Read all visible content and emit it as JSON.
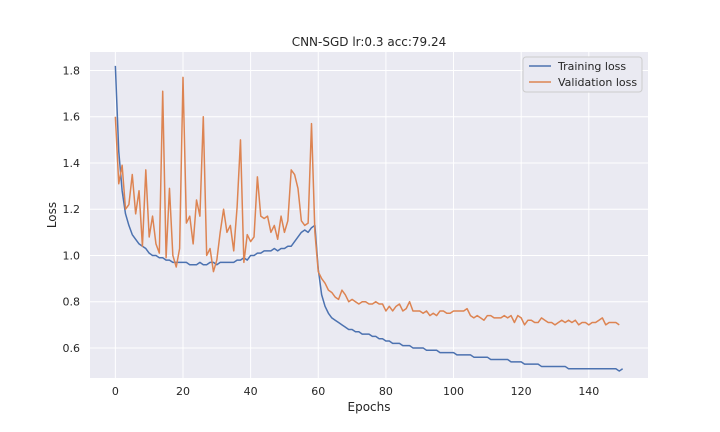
{
  "chart_data": {
    "type": "line",
    "title": "CNN-SGD lr:0.3 acc:79.24",
    "xlabel": "Epochs",
    "ylabel": "Loss",
    "xlim": [
      -7.5,
      157.5
    ],
    "ylim": [
      0.47,
      1.88
    ],
    "xticks": [
      0,
      20,
      40,
      60,
      80,
      100,
      120,
      140
    ],
    "yticks": [
      0.6,
      0.8,
      1.0,
      1.2,
      1.4,
      1.6,
      1.8
    ],
    "grid": true,
    "legend_position": "top-right",
    "series": [
      {
        "name": "Training loss",
        "color": "#4c72b0",
        "values": [
          1.82,
          1.45,
          1.28,
          1.18,
          1.13,
          1.09,
          1.07,
          1.05,
          1.04,
          1.03,
          1.01,
          1.0,
          1.0,
          0.99,
          0.99,
          0.98,
          0.98,
          0.97,
          0.97,
          0.97,
          0.97,
          0.97,
          0.96,
          0.96,
          0.96,
          0.97,
          0.96,
          0.96,
          0.97,
          0.97,
          0.96,
          0.97,
          0.97,
          0.97,
          0.97,
          0.97,
          0.98,
          0.98,
          0.99,
          0.98,
          1.0,
          1.0,
          1.01,
          1.01,
          1.02,
          1.02,
          1.02,
          1.03,
          1.02,
          1.03,
          1.03,
          1.04,
          1.04,
          1.06,
          1.08,
          1.1,
          1.11,
          1.1,
          1.12,
          1.13,
          0.94,
          0.83,
          0.78,
          0.75,
          0.73,
          0.72,
          0.71,
          0.7,
          0.69,
          0.68,
          0.68,
          0.67,
          0.67,
          0.66,
          0.66,
          0.66,
          0.65,
          0.65,
          0.64,
          0.64,
          0.63,
          0.63,
          0.62,
          0.62,
          0.62,
          0.61,
          0.61,
          0.61,
          0.6,
          0.6,
          0.6,
          0.6,
          0.59,
          0.59,
          0.59,
          0.59,
          0.58,
          0.58,
          0.58,
          0.58,
          0.58,
          0.57,
          0.57,
          0.57,
          0.57,
          0.57,
          0.56,
          0.56,
          0.56,
          0.56,
          0.56,
          0.55,
          0.55,
          0.55,
          0.55,
          0.55,
          0.55,
          0.54,
          0.54,
          0.54,
          0.54,
          0.53,
          0.53,
          0.53,
          0.53,
          0.53,
          0.52,
          0.52,
          0.52,
          0.52,
          0.52,
          0.52,
          0.52,
          0.52,
          0.51,
          0.51,
          0.51,
          0.51,
          0.51,
          0.51,
          0.51,
          0.51,
          0.51,
          0.51,
          0.51,
          0.51,
          0.51,
          0.51,
          0.51,
          0.5,
          0.51
        ]
      },
      {
        "name": "Validation loss",
        "color": "#dd8452",
        "values": [
          1.6,
          1.31,
          1.39,
          1.2,
          1.22,
          1.35,
          1.18,
          1.28,
          1.04,
          1.37,
          1.08,
          1.17,
          1.05,
          1.01,
          1.71,
          0.99,
          1.29,
          1.0,
          0.95,
          1.03,
          1.77,
          1.14,
          1.17,
          1.05,
          1.24,
          1.17,
          1.6,
          1.0,
          1.03,
          0.93,
          0.98,
          1.1,
          1.2,
          1.1,
          1.13,
          1.02,
          1.21,
          1.5,
          0.97,
          1.09,
          1.06,
          1.08,
          1.34,
          1.17,
          1.16,
          1.17,
          1.1,
          1.13,
          1.07,
          1.17,
          1.1,
          1.15,
          1.37,
          1.35,
          1.29,
          1.15,
          1.13,
          1.14,
          1.57,
          1.1,
          0.93,
          0.9,
          0.88,
          0.85,
          0.84,
          0.82,
          0.81,
          0.85,
          0.83,
          0.8,
          0.81,
          0.8,
          0.79,
          0.8,
          0.8,
          0.79,
          0.79,
          0.8,
          0.79,
          0.79,
          0.76,
          0.78,
          0.76,
          0.78,
          0.79,
          0.76,
          0.77,
          0.8,
          0.76,
          0.76,
          0.76,
          0.75,
          0.76,
          0.74,
          0.75,
          0.74,
          0.76,
          0.76,
          0.75,
          0.75,
          0.76,
          0.76,
          0.76,
          0.76,
          0.77,
          0.74,
          0.73,
          0.74,
          0.73,
          0.72,
          0.74,
          0.74,
          0.73,
          0.73,
          0.73,
          0.74,
          0.73,
          0.74,
          0.71,
          0.74,
          0.73,
          0.7,
          0.72,
          0.72,
          0.71,
          0.71,
          0.73,
          0.72,
          0.71,
          0.71,
          0.7,
          0.71,
          0.72,
          0.71,
          0.72,
          0.71,
          0.72,
          0.7,
          0.71,
          0.71,
          0.7,
          0.71,
          0.71,
          0.72,
          0.73,
          0.7,
          0.71,
          0.71,
          0.71,
          0.7
        ]
      }
    ]
  }
}
